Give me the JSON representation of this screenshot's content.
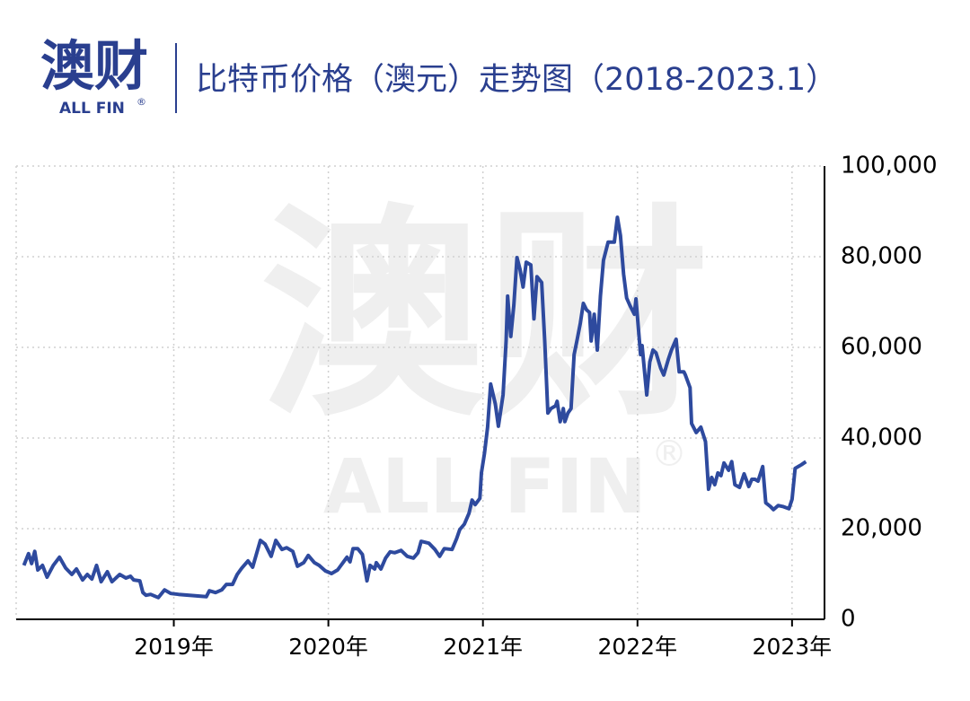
{
  "brand": {
    "name": "澳财",
    "sub": "ALL FIN",
    "mark": "®"
  },
  "chart_data": {
    "type": "line",
    "title": "比特币价格（澳元）走势图（2018-2023.1）",
    "xlim": [
      2017.98,
      2023.21
    ],
    "ylim": [
      0,
      100000
    ],
    "xticks": [
      {
        "value": 2019,
        "label": "2019年"
      },
      {
        "value": 2020,
        "label": "2020年"
      },
      {
        "value": 2021,
        "label": "2021年"
      },
      {
        "value": 2022,
        "label": "2022年"
      },
      {
        "value": 2023,
        "label": "2023年"
      }
    ],
    "yticks": [
      0,
      {
        "value": 20000,
        "label": "20,000"
      },
      {
        "value": 40000,
        "label": "40,000"
      },
      {
        "value": 60000,
        "label": "60,000"
      },
      {
        "value": 80000,
        "label": "80,000"
      },
      {
        "value": 100000,
        "label": "100,000"
      }
    ],
    "grid": true,
    "series": [
      {
        "color": "#2e4a9e",
        "x": [
          2018.03,
          2018.06,
          2018.08,
          2018.1,
          2018.12,
          2018.15,
          2018.18,
          2018.22,
          2018.26,
          2018.3,
          2018.34,
          2018.37,
          2018.41,
          2018.44,
          2018.47,
          2018.5,
          2018.53,
          2018.57,
          2018.6,
          2018.65,
          2018.69,
          2018.72,
          2018.74,
          2018.78,
          2018.8,
          2018.82,
          2018.85,
          2018.9,
          2018.94,
          2018.98,
          2019.03,
          2019.21,
          2019.23,
          2019.27,
          2019.31,
          2019.34,
          2019.38,
          2019.41,
          2019.44,
          2019.48,
          2019.51,
          2019.56,
          2019.59,
          2019.63,
          2019.66,
          2019.7,
          2019.73,
          2019.77,
          2019.8,
          2019.84,
          2019.87,
          2019.91,
          2019.94,
          2019.98,
          2020.02,
          2020.06,
          2020.09,
          2020.12,
          2020.14,
          2020.16,
          2020.19,
          2020.22,
          2020.25,
          2020.27,
          2020.3,
          2020.31,
          2020.34,
          2020.37,
          2020.4,
          2020.43,
          2020.47,
          2020.51,
          2020.55,
          2020.58,
          2020.6,
          2020.65,
          2020.69,
          2020.72,
          2020.75,
          2020.8,
          2020.83,
          2020.85,
          2020.88,
          2020.91,
          2020.93,
          2020.95,
          2020.98,
          2020.99,
          2021.01,
          2021.03,
          2021.05,
          2021.08,
          2021.1,
          2021.13,
          2021.15,
          2021.16,
          2021.18,
          2021.2,
          2021.22,
          2021.24,
          2021.26,
          2021.28,
          2021.31,
          2021.33,
          2021.35,
          2021.38,
          2021.4,
          2021.42,
          2021.44,
          2021.47,
          2021.48,
          2021.5,
          2021.52,
          2021.53,
          2021.55,
          2021.57,
          2021.59,
          2021.61,
          2021.63,
          2021.65,
          2021.67,
          2021.69,
          2021.7,
          2021.72,
          2021.74,
          2021.76,
          2021.78,
          2021.81,
          2021.85,
          2021.87,
          2021.89,
          2021.91,
          2021.93,
          2021.95,
          2021.98,
          2021.99,
          2022.02,
          2022.03,
          2022.06,
          2022.08,
          2022.1,
          2022.12,
          2022.15,
          2022.17,
          2022.2,
          2022.22,
          2022.25,
          2022.27,
          2022.3,
          2022.31,
          2022.34,
          2022.35,
          2022.38,
          2022.41,
          2022.44,
          2022.46,
          2022.48,
          2022.5,
          2022.52,
          2022.54,
          2022.56,
          2022.59,
          2022.61,
          2022.63,
          2022.66,
          2022.69,
          2022.72,
          2022.74,
          2022.76,
          2022.78,
          2022.81,
          2022.83,
          2022.86,
          2022.88,
          2022.91,
          2022.94,
          2022.98,
          2023.0,
          2023.02,
          2023.06,
          2023.09
        ],
        "values": [
          11900,
          14500,
          12300,
          15000,
          10900,
          11900,
          9300,
          11900,
          13700,
          11300,
          9900,
          11100,
          8700,
          9900,
          8900,
          11900,
          8300,
          10500,
          8300,
          9900,
          9100,
          9500,
          8700,
          8500,
          5900,
          5300,
          5500,
          4800,
          6500,
          5700,
          5500,
          5000,
          6300,
          5900,
          6500,
          7700,
          7700,
          9900,
          11300,
          12900,
          11500,
          17400,
          16600,
          13900,
          17400,
          15400,
          15800,
          15000,
          11700,
          12500,
          14100,
          12500,
          11900,
          10700,
          10100,
          10900,
          12300,
          13700,
          12700,
          15600,
          15600,
          14300,
          8500,
          11900,
          11100,
          12500,
          11100,
          13500,
          14900,
          14700,
          15200,
          13900,
          13500,
          14700,
          17200,
          16800,
          15400,
          13900,
          15600,
          15400,
          17800,
          19800,
          21000,
          23400,
          26300,
          25300,
          26700,
          32300,
          36600,
          42400,
          51900,
          47500,
          42600,
          49500,
          61400,
          71300,
          62400,
          69300,
          79800,
          77200,
          73300,
          78800,
          78200,
          66300,
          75600,
          74300,
          61400,
          45500,
          46500,
          47100,
          48100,
          43600,
          46500,
          43600,
          45500,
          46500,
          58400,
          61800,
          65300,
          69700,
          68300,
          67700,
          61400,
          67300,
          59400,
          71300,
          79200,
          83200,
          83200,
          88700,
          84700,
          76200,
          70900,
          69300,
          67300,
          70700,
          58400,
          60400,
          49500,
          56800,
          59400,
          58800,
          55400,
          53900,
          57400,
          59400,
          61800,
          54600,
          54600,
          53900,
          51100,
          43200,
          41200,
          42400,
          39200,
          28700,
          31300,
          29700,
          32300,
          31700,
          34500,
          32900,
          34800,
          29700,
          29100,
          32100,
          29300,
          30900,
          30900,
          30500,
          33700,
          25700,
          24900,
          24200,
          25100,
          24900,
          24400,
          26500,
          33300,
          34100,
          34800
        ]
      }
    ]
  }
}
